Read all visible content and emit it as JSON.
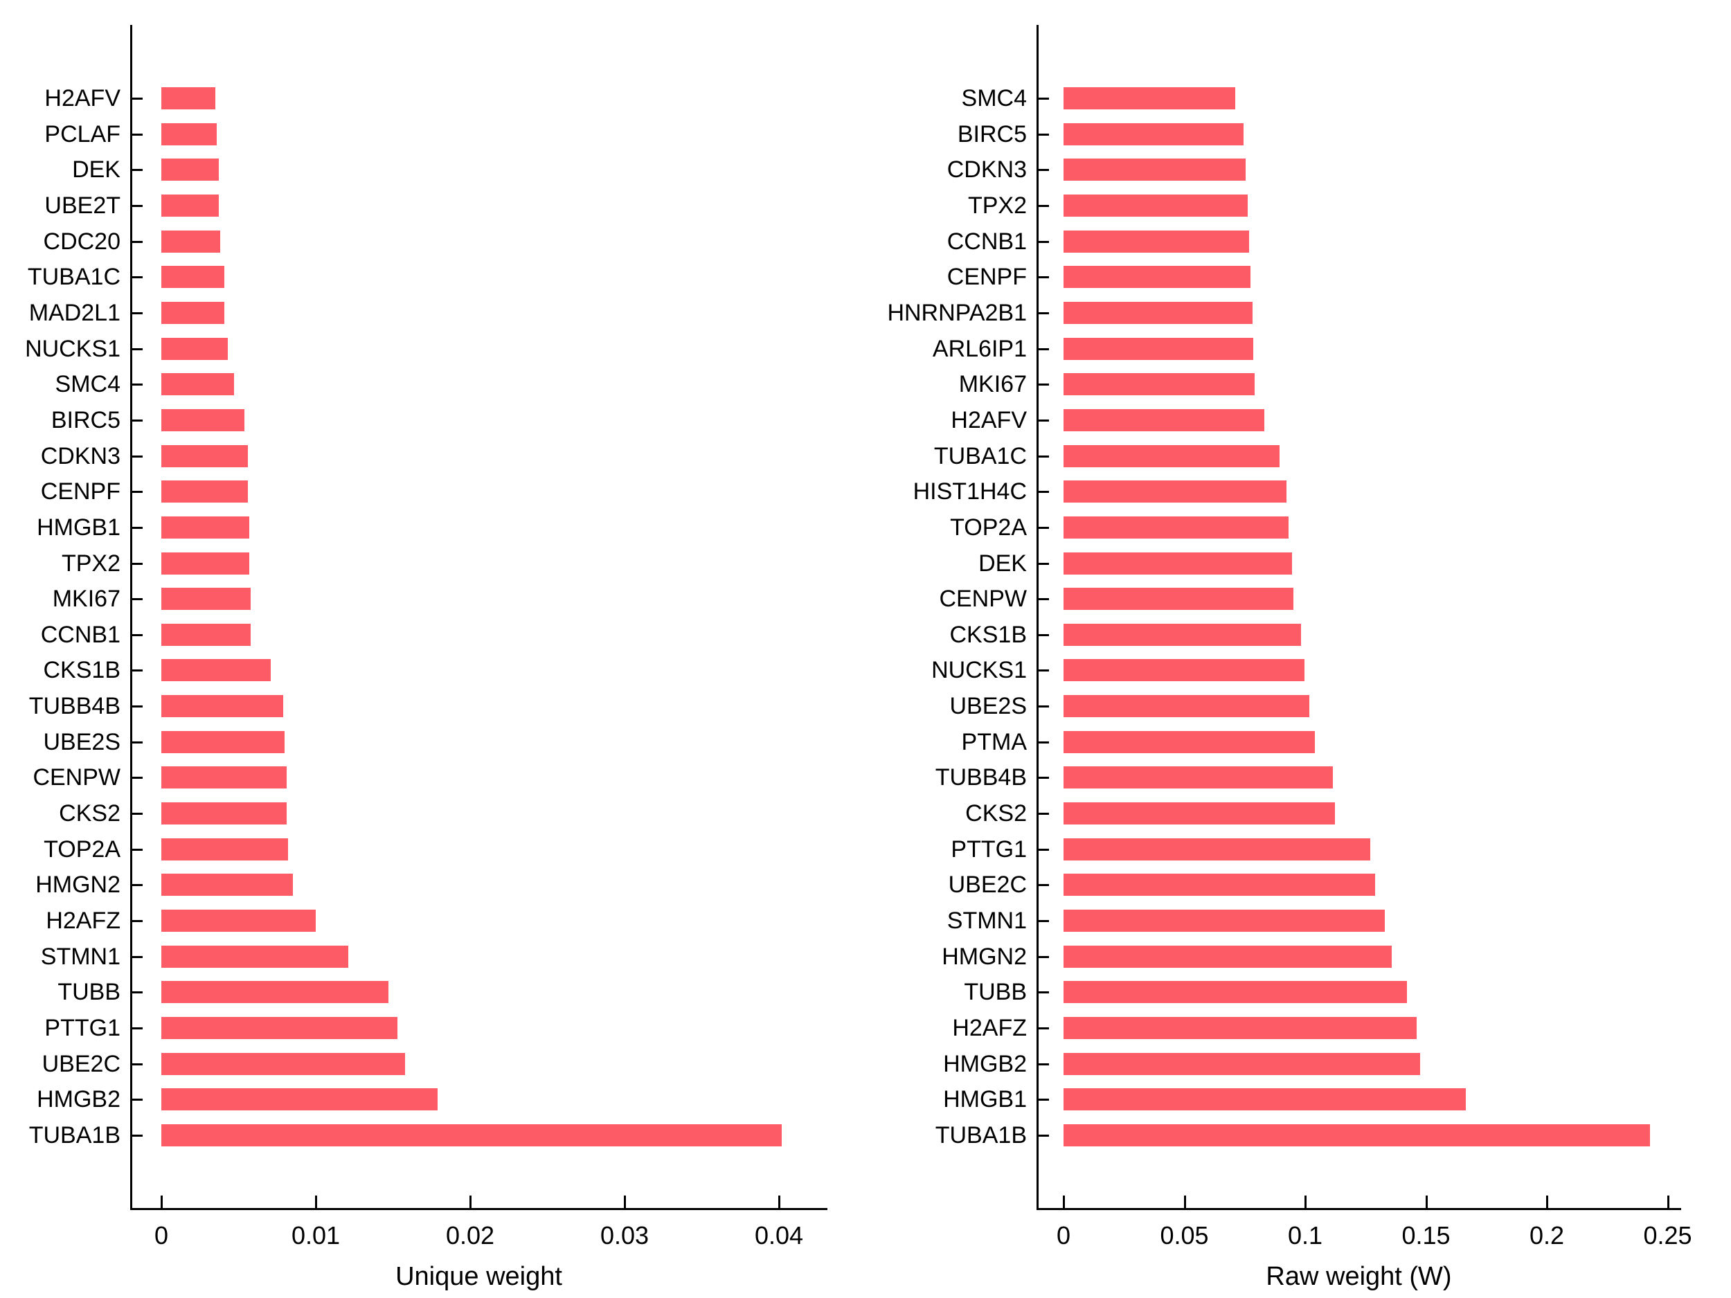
{
  "figure": {
    "background_color": "#FFFFFF",
    "bar_color": "#FD5B65",
    "axis_color": "#000000"
  },
  "chart_data": [
    {
      "type": "bar",
      "orientation": "horizontal",
      "title": "",
      "xlabel": "Unique weight",
      "ylabel": "",
      "grid": false,
      "legend": "none",
      "bar_color": "#FD5B65",
      "xlim": [
        0,
        0.0431
      ],
      "xticks": [
        0,
        0.01,
        0.02,
        0.03,
        0.04
      ],
      "xtick_labels": [
        "0",
        "0.01",
        "0.02",
        "0.03",
        "0.04"
      ],
      "genes_top_to_bottom": [
        "H2AFV",
        "PCLAF",
        "DEK",
        "UBE2T",
        "CDC20",
        "TUBA1C",
        "MAD2L1",
        "NUCKS1",
        "SMC4",
        "BIRC5",
        "CDKN3",
        "CENPF",
        "HMGB1",
        "TPX2",
        "MKI67",
        "CCNB1",
        "CKS1B",
        "TUBB4B",
        "UBE2S",
        "CENPW",
        "CKS2",
        "TOP2A",
        "HMGN2",
        "H2AFZ",
        "STMN1",
        "TUBB",
        "PTTG1",
        "UBE2C",
        "HMGB2",
        "TUBA1B"
      ],
      "values": [
        0.0035,
        0.0036,
        0.0037,
        0.0037,
        0.0038,
        0.0041,
        0.0041,
        0.0043,
        0.0047,
        0.0054,
        0.0056,
        0.0056,
        0.0057,
        0.0057,
        0.0058,
        0.0058,
        0.0071,
        0.0079,
        0.008,
        0.0081,
        0.0081,
        0.0082,
        0.0085,
        0.01,
        0.0121,
        0.0147,
        0.0153,
        0.0158,
        0.0179,
        0.0402
      ]
    },
    {
      "type": "bar",
      "orientation": "horizontal",
      "title": "",
      "xlabel": "Raw weight (W)",
      "ylabel": "",
      "grid": false,
      "legend": "none",
      "bar_color": "#FD5B65",
      "xlim": [
        0,
        0.2556
      ],
      "xticks": [
        0,
        0.05,
        0.1,
        0.15,
        0.2,
        0.25
      ],
      "xtick_labels": [
        "0",
        "0.05",
        "0.1",
        "0.15",
        "0.2",
        "0.25"
      ],
      "genes_top_to_bottom": [
        "SMC4",
        "BIRC5",
        "CDKN3",
        "TPX2",
        "CCNB1",
        "CENPF",
        "HNRNPA2B1",
        "ARL6IP1",
        "MKI67",
        "H2AFV",
        "TUBA1C",
        "HIST1H4C",
        "TOP2A",
        "DEK",
        "CENPW",
        "CKS1B",
        "NUCKS1",
        "UBE2S",
        "PTMA",
        "TUBB4B",
        "CKS2",
        "PTTG1",
        "UBE2C",
        "STMN1",
        "HMGN2",
        "TUBB",
        "H2AFZ",
        "HMGB2",
        "HMGB1",
        "TUBA1B"
      ],
      "values": [
        0.071,
        0.0745,
        0.0755,
        0.0762,
        0.0768,
        0.0775,
        0.0782,
        0.0785,
        0.0792,
        0.0832,
        0.0893,
        0.0923,
        0.0932,
        0.0945,
        0.095,
        0.0983,
        0.0998,
        0.1018,
        0.104,
        0.1115,
        0.1123,
        0.1268,
        0.1288,
        0.133,
        0.1358,
        0.142,
        0.146,
        0.1475,
        0.1665,
        0.2427
      ]
    }
  ]
}
